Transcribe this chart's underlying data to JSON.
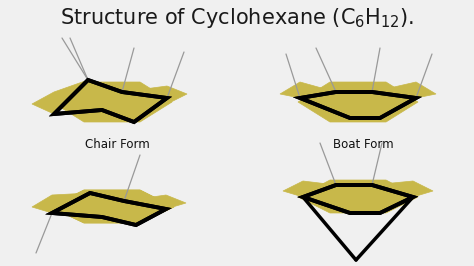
{
  "bg_color": "#f0f0f0",
  "gold_color": "#C8B84A",
  "black": "#000000",
  "gray": "#999999",
  "label_chair": "Chair Form",
  "label_boat": "Boat Form",
  "title_fontsize": 15,
  "label_fontsize": 8.5
}
